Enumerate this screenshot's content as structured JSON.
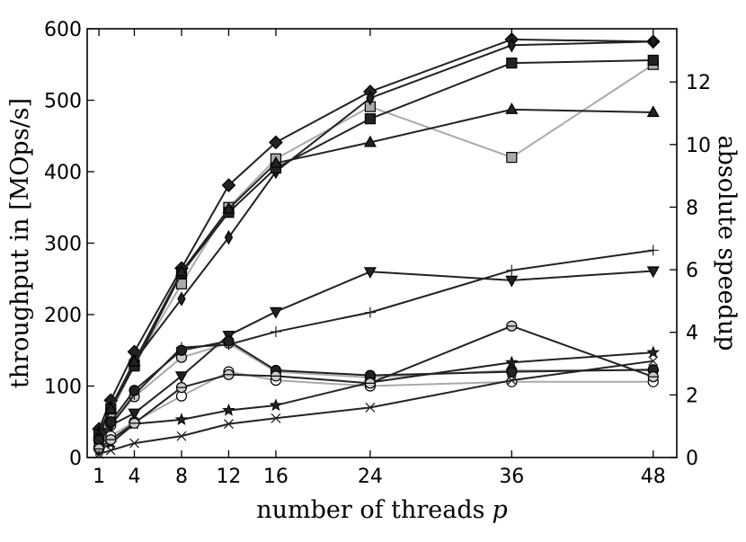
{
  "chart_data": {
    "type": "line",
    "xlabel": "number of threads",
    "xlabel_var": "p",
    "ylabel": "throughput in [MOps/s]",
    "y2label": "absolute speedup",
    "x_ticks": [
      1,
      4,
      8,
      12,
      16,
      24,
      36,
      48
    ],
    "y_ticks": [
      0,
      100,
      200,
      300,
      400,
      500,
      600
    ],
    "y2_ticks": [
      0,
      2,
      4,
      6,
      8,
      10,
      12
    ],
    "xlim": [
      0,
      50
    ],
    "ylim": [
      0,
      600
    ],
    "y2lim": [
      0,
      13.7
    ],
    "grid": false,
    "legend": "none",
    "x": [
      1,
      2,
      4,
      8,
      12,
      16,
      24,
      36,
      48
    ],
    "series": [
      {
        "marker": "diamond",
        "fill": "#222222",
        "line": "#222222",
        "values": [
          40,
          80,
          148,
          265,
          381,
          441,
          512,
          585,
          582
        ]
      },
      {
        "marker": "thin-diamond",
        "fill": "#222222",
        "line": "#222222",
        "values": [
          35,
          70,
          135,
          222,
          308,
          400,
          503,
          577,
          582
        ]
      },
      {
        "marker": "square",
        "fill": "#222222",
        "line": "#222222",
        "values": [
          32,
          68,
          128,
          258,
          343,
          405,
          474,
          552,
          556
        ]
      },
      {
        "marker": "square",
        "fill": "#aaaaaa",
        "line": "#aaaaaa",
        "values": [
          30,
          62,
          130,
          243,
          350,
          418,
          491,
          420,
          550
        ]
      },
      {
        "marker": "triangle-up",
        "fill": "#222222",
        "line": "#222222",
        "values": [
          30,
          68,
          134,
          260,
          348,
          412,
          441,
          487,
          483
        ]
      },
      {
        "marker": "plus",
        "fill": "none",
        "line": "#222222",
        "values": [
          20,
          45,
          88,
          154,
          158,
          176,
          203,
          262,
          290
        ]
      },
      {
        "marker": "triangle-down",
        "fill": "#222222",
        "line": "#222222",
        "values": [
          22,
          45,
          62,
          114,
          171,
          204,
          260,
          248,
          261
        ]
      },
      {
        "marker": "circle",
        "fill": "#222222",
        "line": "#222222",
        "values": [
          25,
          50,
          94,
          150,
          163,
          122,
          115,
          120,
          123
        ]
      },
      {
        "marker": "circle",
        "fill": "#cccccc",
        "line": "#aaaaaa",
        "values": [
          22,
          45,
          85,
          140,
          160,
          120,
          112,
          122,
          122
        ]
      },
      {
        "marker": "circle",
        "fill": "#ffffff",
        "line": "#aaaaaa",
        "values": [
          15,
          30,
          50,
          86,
          120,
          108,
          100,
          106,
          106
        ]
      },
      {
        "marker": "star",
        "fill": "#222222",
        "line": "#222222",
        "values": [
          10,
          20,
          47,
          53,
          66,
          73,
          105,
          133,
          147
        ]
      },
      {
        "marker": "circle-line",
        "fill": "#cccccc",
        "line": "#222222",
        "values": [
          12,
          25,
          48,
          98,
          116,
          114,
          104,
          184,
          113
        ]
      },
      {
        "marker": "x",
        "fill": "none",
        "line": "#222222",
        "values": [
          5,
          10,
          20,
          30,
          47,
          55,
          70,
          108,
          135
        ]
      }
    ]
  }
}
